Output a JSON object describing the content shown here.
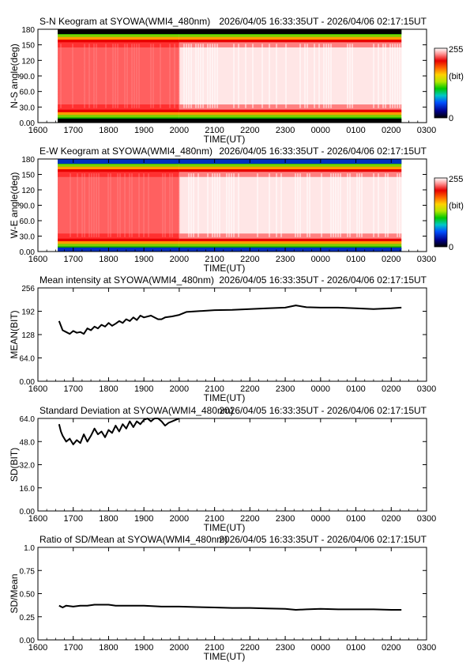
{
  "chart_data": [
    {
      "type": "heatmap",
      "title": "S-N Keogram at SYOWA(WMI4_480nm)",
      "time_range": "2026/04/05 16:33:35UT - 2026/04/06 02:17:15UT",
      "xlabel": "TIME(UT)",
      "ylabel": "N-S angle(deg)",
      "x_ticks": [
        "1600",
        "1700",
        "1800",
        "1900",
        "2000",
        "2100",
        "2200",
        "2300",
        "0000",
        "0100",
        "0200",
        "0300"
      ],
      "y_ticks": [
        "0.00",
        "30.0",
        "60.0",
        "90.0",
        "120",
        "150",
        "180"
      ],
      "ylim": [
        0,
        180
      ],
      "colorbar": {
        "max": "255",
        "unit": "(bit)",
        "min": "0"
      },
      "data_extent_hours": [
        16.56,
        26.29
      ],
      "bright_band_deg": [
        20,
        160
      ]
    },
    {
      "type": "heatmap",
      "title": "E-W Keogram at SYOWA(WMI4_480nm)",
      "time_range": "2026/04/05 16:33:35UT - 2026/04/06 02:17:15UT",
      "xlabel": "TIME(UT)",
      "ylabel": "W-E angle(deg)",
      "x_ticks": [
        "1600",
        "1700",
        "1800",
        "1900",
        "2000",
        "2100",
        "2200",
        "2300",
        "0000",
        "0100",
        "0200",
        "0300"
      ],
      "y_ticks": [
        "0.00",
        "30.0",
        "60.0",
        "90.0",
        "120",
        "150",
        "180"
      ],
      "ylim": [
        0,
        180
      ],
      "colorbar": {
        "max": "255",
        "unit": "(bit)",
        "min": "0"
      },
      "data_extent_hours": [
        16.56,
        26.29
      ],
      "bright_band_deg": [
        20,
        160
      ]
    },
    {
      "type": "line",
      "title": "Mean intensity at SYOWA(WMI4_480nm)",
      "time_range": "2026/04/05 16:33:35UT - 2026/04/06 02:17:15UT",
      "xlabel": "TIME(UT)",
      "ylabel": "MEAN(BIT)",
      "x_ticks": [
        "1600",
        "1700",
        "1800",
        "1900",
        "2000",
        "2100",
        "2200",
        "2300",
        "0000",
        "0100",
        "0200",
        "0300"
      ],
      "y_ticks": [
        "0.00",
        "64.0",
        "128",
        "192",
        "256"
      ],
      "ylim": [
        0,
        256
      ],
      "x": [
        16.6,
        16.65,
        16.7,
        16.8,
        16.9,
        17.0,
        17.1,
        17.2,
        17.3,
        17.4,
        17.5,
        17.6,
        17.7,
        17.8,
        17.9,
        18.0,
        18.1,
        18.2,
        18.3,
        18.4,
        18.5,
        18.6,
        18.7,
        18.8,
        18.9,
        19.0,
        19.2,
        19.4,
        19.5,
        19.6,
        19.8,
        20.0,
        20.2,
        20.5,
        21.0,
        21.5,
        22.0,
        22.5,
        23.0,
        23.3,
        23.6,
        24.0,
        24.5,
        25.0,
        25.5,
        26.0,
        26.29
      ],
      "y": [
        165,
        152,
        140,
        135,
        130,
        138,
        133,
        135,
        130,
        145,
        140,
        150,
        145,
        155,
        150,
        160,
        152,
        158,
        165,
        160,
        170,
        165,
        175,
        168,
        180,
        175,
        180,
        170,
        170,
        175,
        178,
        182,
        190,
        192,
        195,
        196,
        198,
        200,
        202,
        208,
        203,
        202,
        202,
        200,
        198,
        200,
        202
      ]
    },
    {
      "type": "line",
      "title": "Standard Deviation at SYOWA(WMI4_480nm)",
      "time_range": "2026/04/05 16:33:35UT - 2026/04/06 02:17:15UT",
      "xlabel": "TIME(UT)",
      "ylabel": "SD(BIT)",
      "x_ticks": [
        "1600",
        "1700",
        "1800",
        "1900",
        "2000",
        "2100",
        "2200",
        "2300",
        "0000",
        "0100",
        "0200",
        "0300"
      ],
      "y_ticks": [
        "0.00",
        "16.0",
        "32.0",
        "48.0",
        "64.0"
      ],
      "ylim": [
        0,
        64
      ],
      "x": [
        16.6,
        16.65,
        16.7,
        16.8,
        16.9,
        17.0,
        17.1,
        17.2,
        17.3,
        17.4,
        17.5,
        17.6,
        17.7,
        17.8,
        17.9,
        18.0,
        18.1,
        18.2,
        18.3,
        18.4,
        18.5,
        18.6,
        18.7,
        18.8,
        18.9,
        19.0,
        19.1,
        19.2,
        19.3,
        19.4,
        19.5,
        19.6,
        19.7,
        19.8,
        19.9,
        20.0
      ],
      "y": [
        60,
        55,
        52,
        48,
        50,
        46,
        49,
        47,
        53,
        48,
        52,
        57,
        53,
        55,
        51,
        56,
        54,
        59,
        55,
        60,
        57,
        62,
        58,
        62,
        60,
        63,
        64,
        62,
        64,
        65,
        62,
        59,
        61,
        62,
        63,
        64
      ]
    },
    {
      "type": "line",
      "title": "Ratio of SD/Mean at SYOWA(WMI4_480nm)",
      "time_range": "2026/04/05 16:33:35UT - 2026/04/06 02:17:15UT",
      "xlabel": "TIME(UT)",
      "ylabel": "SD/Mean",
      "x_ticks": [
        "1600",
        "1700",
        "1800",
        "1900",
        "2000",
        "2100",
        "2200",
        "2300",
        "0000",
        "0100",
        "0200",
        "0300"
      ],
      "y_ticks": [
        "0.00",
        "0.25",
        "0.50",
        "0.75",
        "1.0"
      ],
      "ylim": [
        0,
        1
      ],
      "x": [
        16.6,
        16.7,
        16.8,
        17.0,
        17.2,
        17.4,
        17.6,
        17.8,
        18.0,
        18.2,
        18.5,
        19.0,
        19.5,
        20.0,
        20.5,
        21.0,
        21.5,
        22.0,
        22.5,
        23.0,
        23.3,
        23.6,
        24.0,
        24.5,
        25.0,
        25.5,
        26.0,
        26.29
      ],
      "y": [
        0.37,
        0.35,
        0.37,
        0.36,
        0.37,
        0.37,
        0.38,
        0.38,
        0.38,
        0.37,
        0.37,
        0.37,
        0.36,
        0.36,
        0.355,
        0.35,
        0.345,
        0.345,
        0.34,
        0.335,
        0.325,
        0.33,
        0.335,
        0.33,
        0.33,
        0.33,
        0.325,
        0.325
      ]
    }
  ]
}
